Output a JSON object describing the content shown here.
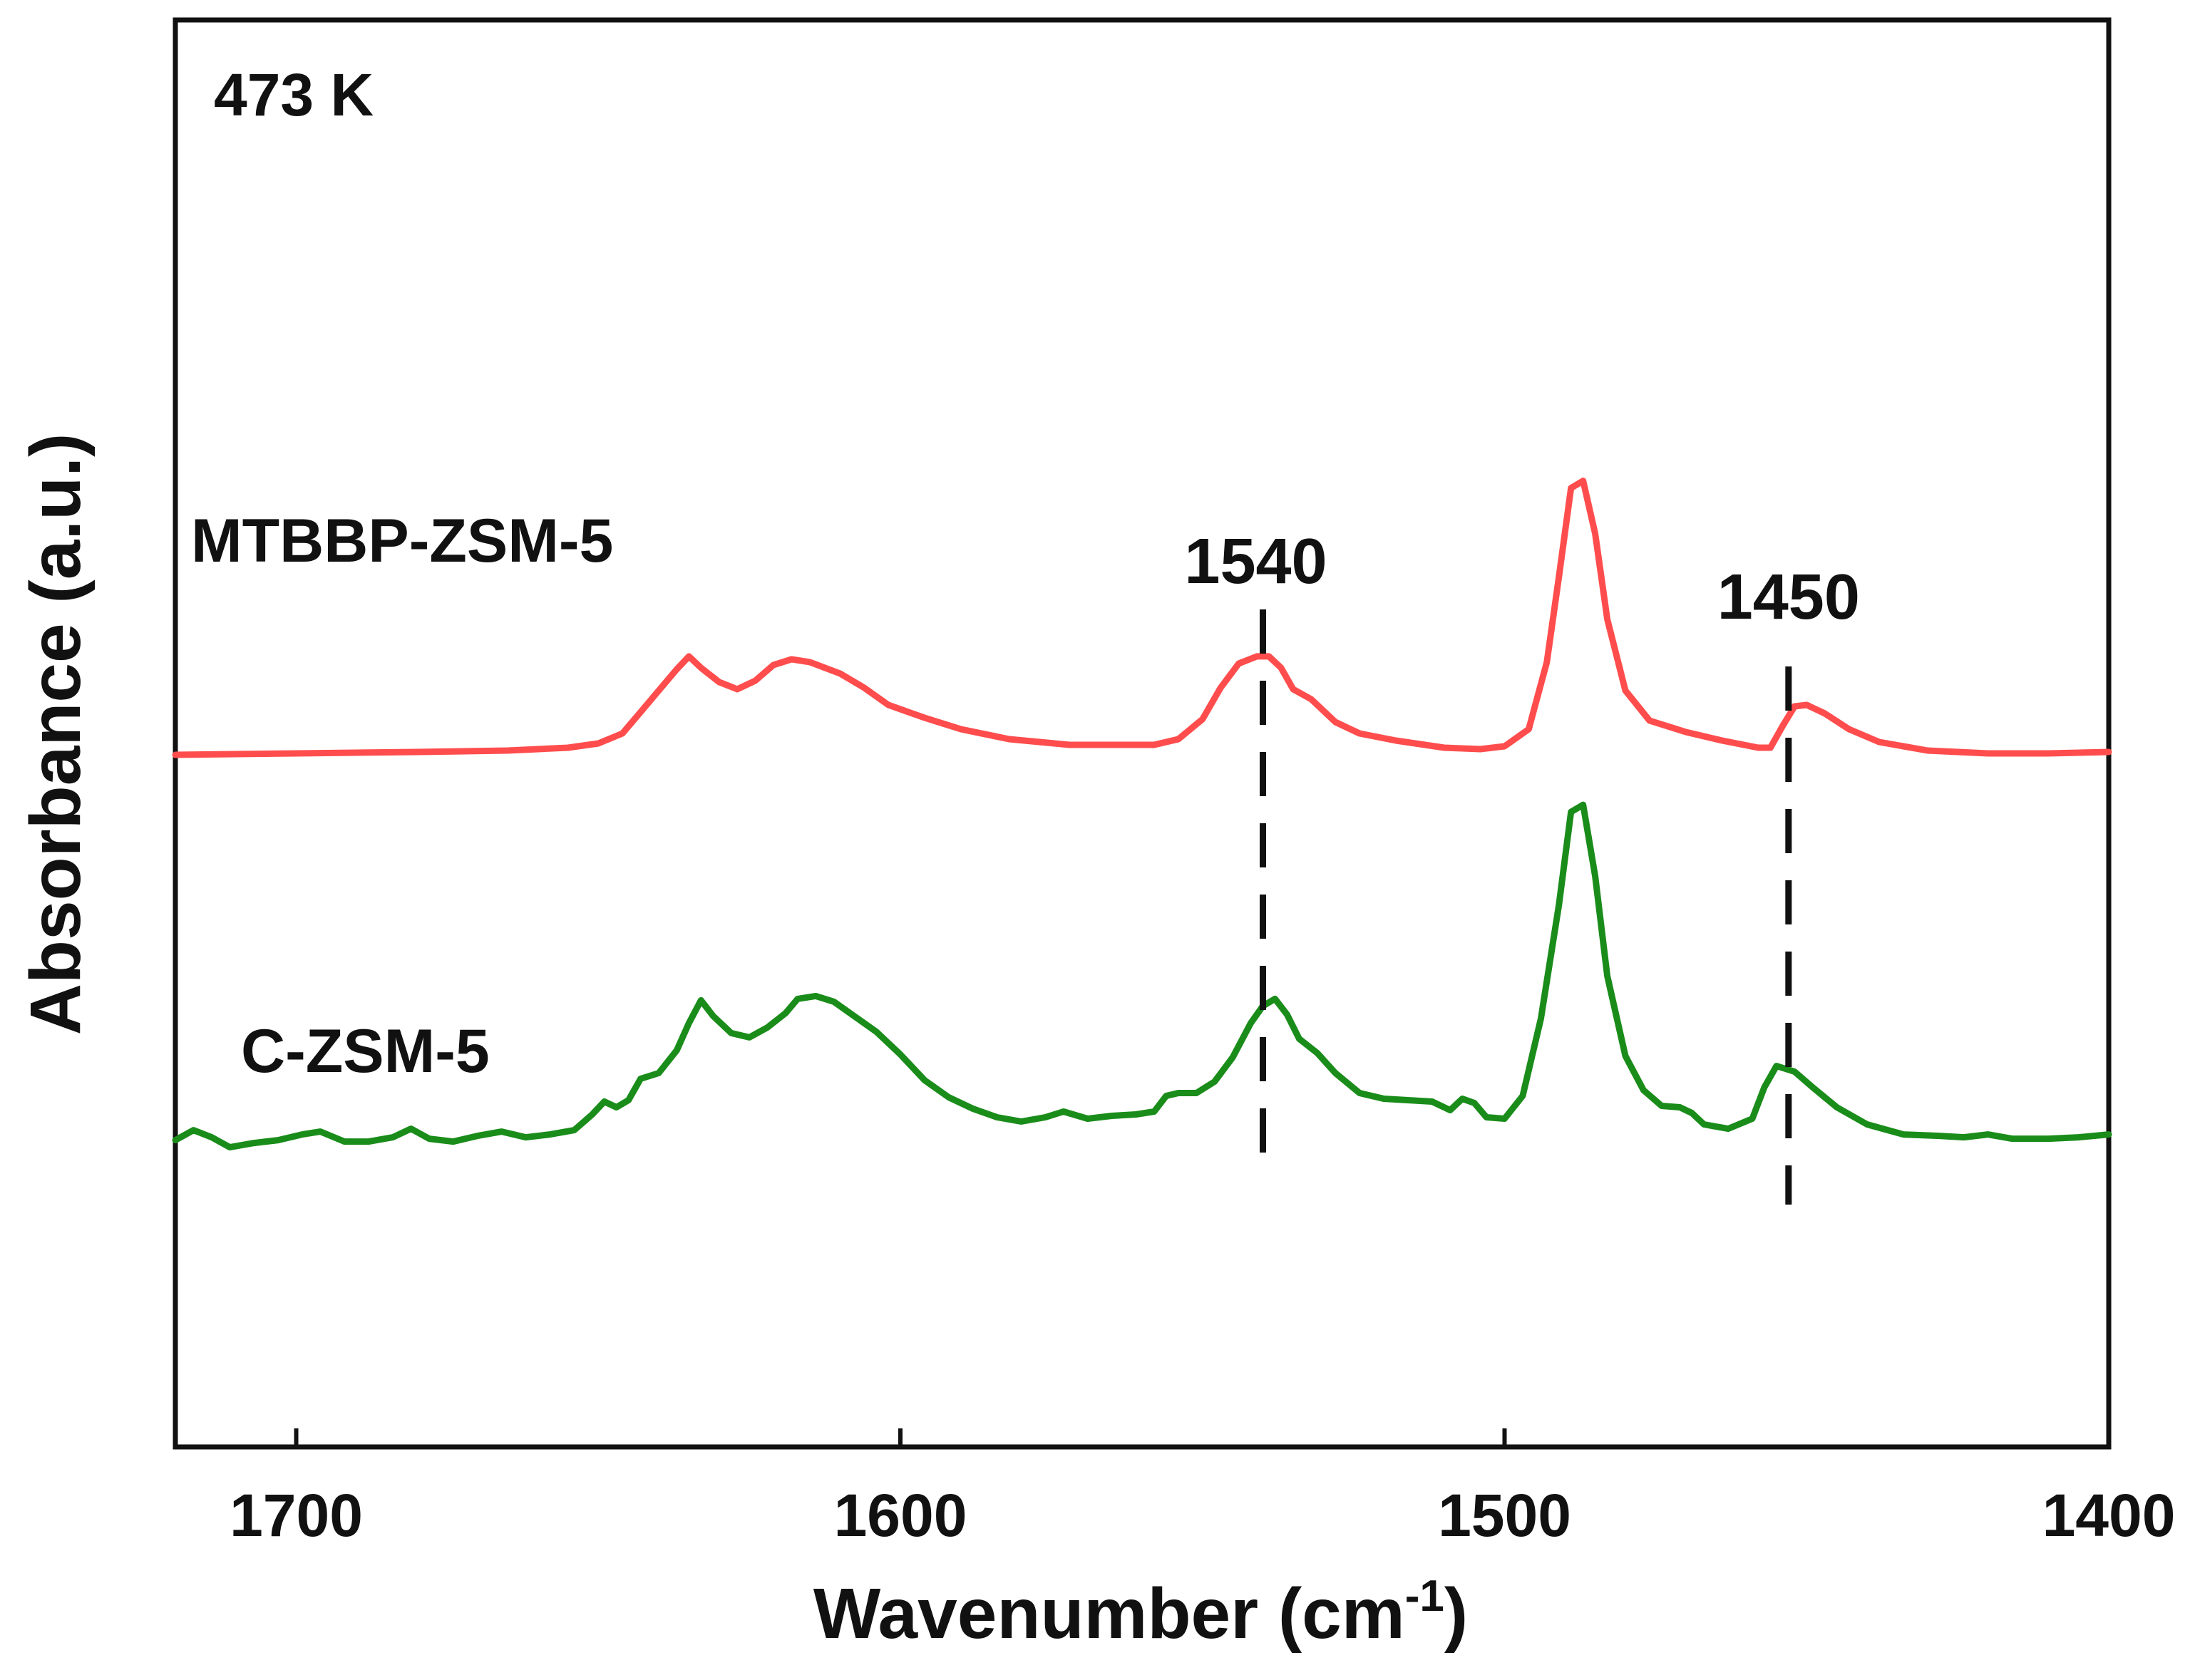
{
  "chart_data": {
    "type": "line",
    "title": "",
    "temperature_label": "473 K",
    "xlabel_main": "Wavenumber (cm",
    "xlabel_sup": "-1",
    "xlabel_close": ")",
    "ylabel": "Absorbance (a.u.)",
    "xlim": [
      1720,
      1400
    ],
    "x_reversed": true,
    "ylim": [
      0,
      1
    ],
    "yticks_shown": false,
    "xticks": [
      1700,
      1600,
      1500,
      1400
    ],
    "xtick_labels": [
      "1700",
      "1600",
      "1500",
      "1400"
    ],
    "peak_markers": [
      {
        "x": 1540,
        "label": "1540"
      },
      {
        "x": 1453,
        "label": "1450"
      }
    ],
    "series": [
      {
        "name": "MTBBP-ZSM-5",
        "color": "#ff4d4d",
        "points": [
          [
            1720,
            0.485
          ],
          [
            1700,
            0.486
          ],
          [
            1680,
            0.487
          ],
          [
            1665,
            0.488
          ],
          [
            1655,
            0.49
          ],
          [
            1650,
            0.493
          ],
          [
            1646,
            0.5
          ],
          [
            1643,
            0.515
          ],
          [
            1640,
            0.53
          ],
          [
            1637,
            0.545
          ],
          [
            1635,
            0.554
          ],
          [
            1633,
            0.546
          ],
          [
            1630,
            0.536
          ],
          [
            1627,
            0.531
          ],
          [
            1624,
            0.537
          ],
          [
            1621,
            0.548
          ],
          [
            1618,
            0.552
          ],
          [
            1615,
            0.55
          ],
          [
            1610,
            0.542
          ],
          [
            1606,
            0.532
          ],
          [
            1602,
            0.52
          ],
          [
            1596,
            0.511
          ],
          [
            1590,
            0.503
          ],
          [
            1582,
            0.496
          ],
          [
            1572,
            0.492
          ],
          [
            1565,
            0.492
          ],
          [
            1558,
            0.492
          ],
          [
            1554,
            0.496
          ],
          [
            1550,
            0.51
          ],
          [
            1547,
            0.532
          ],
          [
            1544,
            0.549
          ],
          [
            1541,
            0.554
          ],
          [
            1539,
            0.554
          ],
          [
            1537,
            0.546
          ],
          [
            1535,
            0.531
          ],
          [
            1532,
            0.524
          ],
          [
            1528,
            0.508
          ],
          [
            1524,
            0.5
          ],
          [
            1518,
            0.495
          ],
          [
            1510,
            0.49
          ],
          [
            1504,
            0.489
          ],
          [
            1500,
            0.491
          ],
          [
            1496,
            0.503
          ],
          [
            1493,
            0.55
          ],
          [
            1491,
            0.61
          ],
          [
            1489,
            0.672
          ],
          [
            1487,
            0.677
          ],
          [
            1485,
            0.64
          ],
          [
            1483,
            0.58
          ],
          [
            1480,
            0.53
          ],
          [
            1476,
            0.509
          ],
          [
            1470,
            0.501
          ],
          [
            1464,
            0.495
          ],
          [
            1458,
            0.49
          ],
          [
            1456,
            0.49
          ],
          [
            1454,
            0.505
          ],
          [
            1452,
            0.519
          ],
          [
            1450,
            0.52
          ],
          [
            1447,
            0.514
          ],
          [
            1443,
            0.503
          ],
          [
            1438,
            0.494
          ],
          [
            1430,
            0.488
          ],
          [
            1420,
            0.486
          ],
          [
            1410,
            0.486
          ],
          [
            1400,
            0.487
          ]
        ]
      },
      {
        "name": "C-ZSM-5",
        "color": "#1a8c1a",
        "points": [
          [
            1720,
            0.215
          ],
          [
            1717,
            0.222
          ],
          [
            1714,
            0.217
          ],
          [
            1711,
            0.21
          ],
          [
            1707,
            0.213
          ],
          [
            1703,
            0.215
          ],
          [
            1699,
            0.219
          ],
          [
            1696,
            0.221
          ],
          [
            1692,
            0.214
          ],
          [
            1688,
            0.214
          ],
          [
            1684,
            0.217
          ],
          [
            1681,
            0.223
          ],
          [
            1678,
            0.216
          ],
          [
            1674,
            0.214
          ],
          [
            1670,
            0.218
          ],
          [
            1666,
            0.221
          ],
          [
            1662,
            0.217
          ],
          [
            1658,
            0.219
          ],
          [
            1654,
            0.222
          ],
          [
            1651,
            0.233
          ],
          [
            1649,
            0.242
          ],
          [
            1647,
            0.238
          ],
          [
            1645,
            0.243
          ],
          [
            1643,
            0.258
          ],
          [
            1640,
            0.262
          ],
          [
            1637,
            0.278
          ],
          [
            1635,
            0.297
          ],
          [
            1633,
            0.313
          ],
          [
            1631,
            0.302
          ],
          [
            1628,
            0.29
          ],
          [
            1625,
            0.287
          ],
          [
            1622,
            0.294
          ],
          [
            1619,
            0.304
          ],
          [
            1617,
            0.314
          ],
          [
            1614,
            0.316
          ],
          [
            1611,
            0.312
          ],
          [
            1608,
            0.303
          ],
          [
            1604,
            0.291
          ],
          [
            1600,
            0.275
          ],
          [
            1596,
            0.257
          ],
          [
            1592,
            0.245
          ],
          [
            1588,
            0.237
          ],
          [
            1584,
            0.231
          ],
          [
            1580,
            0.228
          ],
          [
            1576,
            0.231
          ],
          [
            1573,
            0.235
          ],
          [
            1569,
            0.23
          ],
          [
            1565,
            0.232
          ],
          [
            1561,
            0.233
          ],
          [
            1558,
            0.235
          ],
          [
            1556,
            0.246
          ],
          [
            1554,
            0.248
          ],
          [
            1551,
            0.248
          ],
          [
            1548,
            0.256
          ],
          [
            1545,
            0.273
          ],
          [
            1542,
            0.297
          ],
          [
            1540,
            0.309
          ],
          [
            1538,
            0.314
          ],
          [
            1536,
            0.303
          ],
          [
            1534,
            0.286
          ],
          [
            1531,
            0.276
          ],
          [
            1528,
            0.262
          ],
          [
            1524,
            0.248
          ],
          [
            1520,
            0.244
          ],
          [
            1516,
            0.243
          ],
          [
            1512,
            0.242
          ],
          [
            1509,
            0.236
          ],
          [
            1507,
            0.244
          ],
          [
            1505,
            0.241
          ],
          [
            1503,
            0.231
          ],
          [
            1500,
            0.23
          ],
          [
            1497,
            0.246
          ],
          [
            1494,
            0.3
          ],
          [
            1491,
            0.38
          ],
          [
            1489,
            0.445
          ],
          [
            1487,
            0.45
          ],
          [
            1485,
            0.4
          ],
          [
            1483,
            0.33
          ],
          [
            1480,
            0.274
          ],
          [
            1477,
            0.25
          ],
          [
            1474,
            0.239
          ],
          [
            1471,
            0.238
          ],
          [
            1469,
            0.234
          ],
          [
            1467,
            0.226
          ],
          [
            1463,
            0.223
          ],
          [
            1459,
            0.23
          ],
          [
            1457,
            0.252
          ],
          [
            1455,
            0.267
          ],
          [
            1452,
            0.263
          ],
          [
            1449,
            0.252
          ],
          [
            1445,
            0.238
          ],
          [
            1440,
            0.226
          ],
          [
            1434,
            0.219
          ],
          [
            1428,
            0.218
          ],
          [
            1424,
            0.217
          ],
          [
            1420,
            0.219
          ],
          [
            1416,
            0.216
          ],
          [
            1410,
            0.216
          ],
          [
            1405,
            0.217
          ],
          [
            1400,
            0.219
          ]
        ]
      }
    ]
  }
}
